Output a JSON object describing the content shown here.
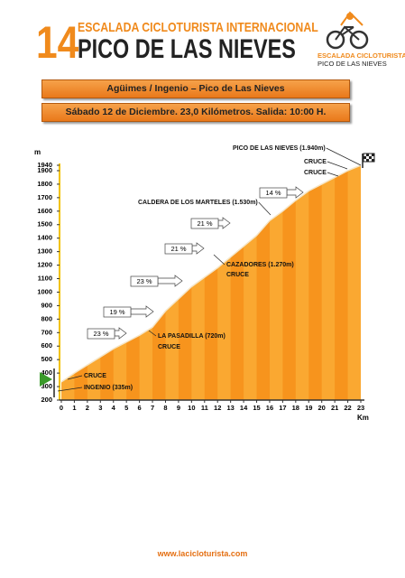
{
  "header": {
    "number": "14",
    "title_top": "ESCALADA CICLOTURISTA INTERNACIONAL",
    "title": "PICO DE LAS NIEVES",
    "logo_line1": "ESCALADA CICLOTURISTA",
    "logo_line2": "PICO DE LAS NIEVES"
  },
  "banners": [
    "Agüimes / Ingenio – Pico de Las Nieves",
    "Sábado 12 de Diciembre. 23,0 Kilómetros. Salida: 10:00 H."
  ],
  "chart_data": {
    "type": "area",
    "y_label": "m",
    "x_label": "Km",
    "x": [
      0,
      1,
      2,
      3,
      4,
      5,
      6,
      7,
      8,
      9,
      10,
      11,
      12,
      13,
      14,
      15,
      16,
      17,
      18,
      19,
      20,
      21,
      22,
      23
    ],
    "values": [
      335,
      400,
      460,
      520,
      580,
      630,
      680,
      740,
      860,
      950,
      1040,
      1110,
      1180,
      1260,
      1340,
      1420,
      1530,
      1600,
      1680,
      1750,
      1800,
      1850,
      1900,
      1940
    ],
    "color": "#f7941d",
    "xlim": [
      0,
      23
    ],
    "xticks": [
      0,
      1,
      2,
      3,
      4,
      5,
      6,
      7,
      8,
      9,
      10,
      11,
      12,
      13,
      14,
      15,
      16,
      17,
      18,
      19,
      20,
      21,
      22,
      23
    ],
    "ylim": [
      200,
      1940
    ],
    "yticks": [
      200,
      300,
      400,
      500,
      600,
      700,
      800,
      900,
      1000,
      1100,
      1200,
      1300,
      1400,
      1500,
      1600,
      1700,
      1800,
      1900,
      1940
    ],
    "annotations": [
      "PICO DE LAS NIEVES (1.940m)",
      "CRUCE",
      "CRUCE",
      "CALDERA DE LOS MARTELES (1.530m)",
      "CAZADORES (1.270m)",
      "CRUCE",
      "LA PASADILLA (720m)",
      "CRUCE",
      "CRUCE",
      "INGENIO (335m)"
    ],
    "gradients": [
      "14 %",
      "21 %",
      "21 %",
      "23 %",
      "19 %",
      "23 %"
    ]
  },
  "footer": "www.lacicloturista.com"
}
